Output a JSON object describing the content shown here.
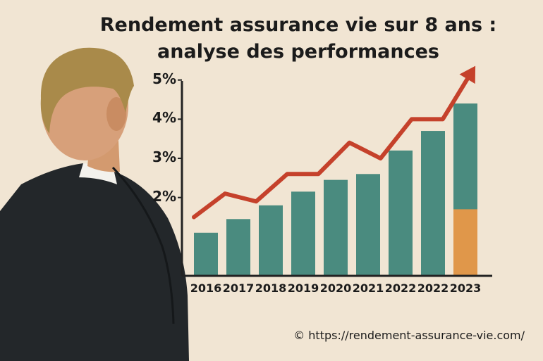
{
  "title_line1": "Rendement assurance vie sur 8 ans :",
  "title_line2": "analyse des performances",
  "copyright": "© https://rendement-assurance-vie.com/",
  "colors": {
    "background": "#f1e5d3",
    "bar": "#4a8b7f",
    "bar_highlight": "#e0974a",
    "trend_arrow": "#c5412b",
    "axis": "#222222"
  },
  "chart_data": {
    "type": "bar",
    "categories": [
      "2016",
      "2017",
      "2018",
      "2019",
      "2020",
      "2021",
      "2022",
      "2022",
      "2023"
    ],
    "values": [
      1.1,
      1.45,
      1.8,
      2.15,
      2.45,
      2.6,
      3.2,
      3.7,
      4.4
    ],
    "highlight_last_segment": 1.7,
    "trend_line": [
      1.5,
      2.1,
      1.9,
      2.6,
      2.6,
      3.4,
      3.0,
      4.0,
      4.0,
      5.3
    ],
    "yticks": [
      "2%",
      "3%",
      "4%",
      "5%"
    ],
    "ylim": [
      0,
      5.3
    ],
    "grid": false
  }
}
